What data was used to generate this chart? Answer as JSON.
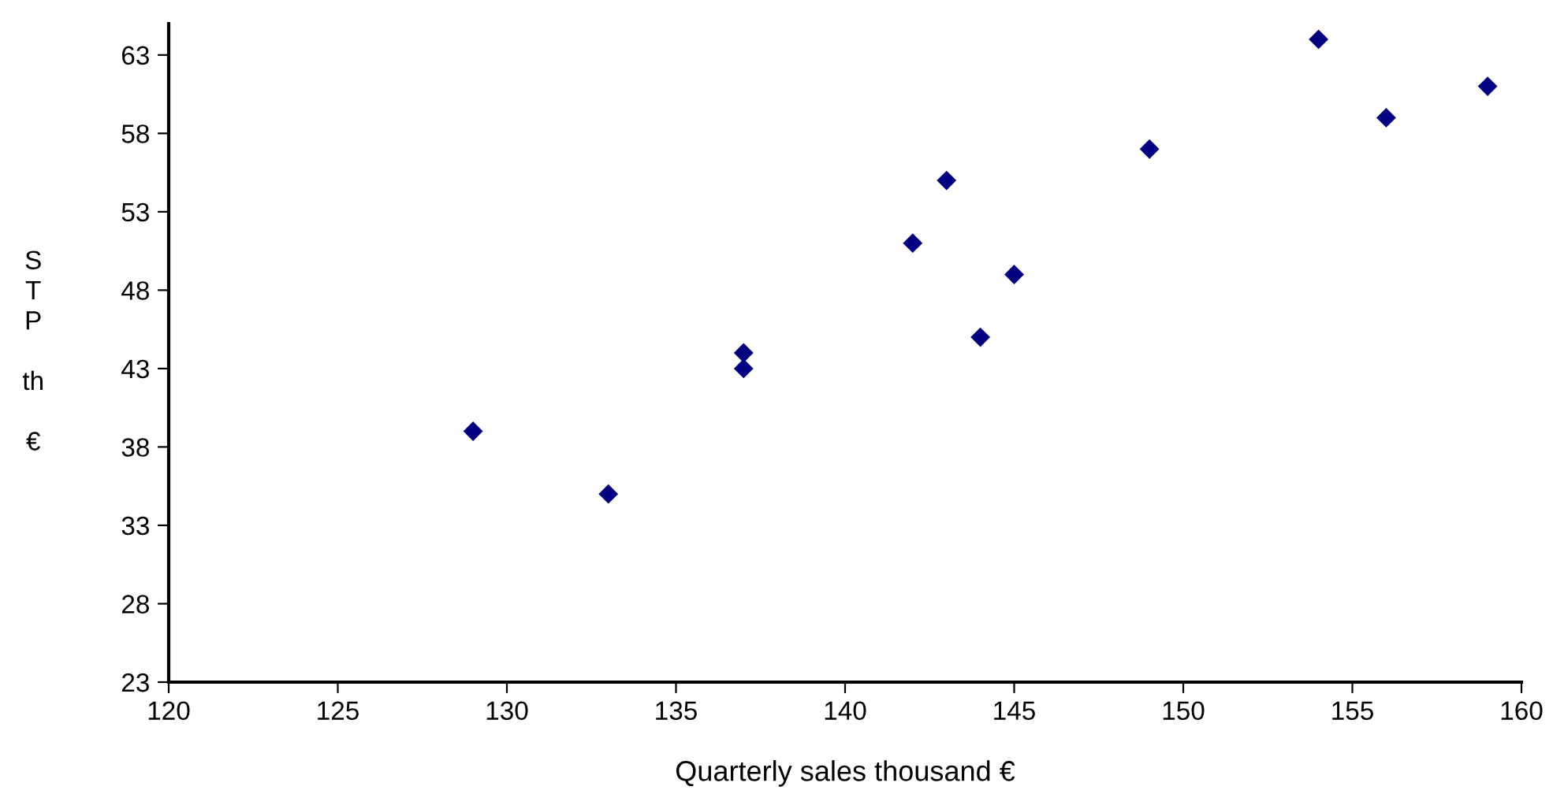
{
  "chart_data": {
    "type": "scatter",
    "xlabel": "Quarterly sales thousand €",
    "ylabel": "S\nT\nP\n\nth\n\n€",
    "x": [
      129,
      133,
      137,
      137,
      142,
      143,
      144,
      145,
      149,
      154,
      156,
      159
    ],
    "series": [
      {
        "color": "#000080",
        "values": [
          39,
          35,
          44,
          43,
          51,
          55,
          45,
          49,
          57,
          64,
          59,
          61
        ]
      }
    ],
    "xlim": [
      120,
      160
    ],
    "xticks": [
      120,
      125,
      130,
      135,
      140,
      145,
      150,
      155,
      160
    ],
    "ylim": [
      23,
      65
    ],
    "yticks": [
      23,
      28,
      33,
      38,
      43,
      48,
      53,
      58,
      63
    ],
    "marker": "diamond",
    "grid": false
  }
}
